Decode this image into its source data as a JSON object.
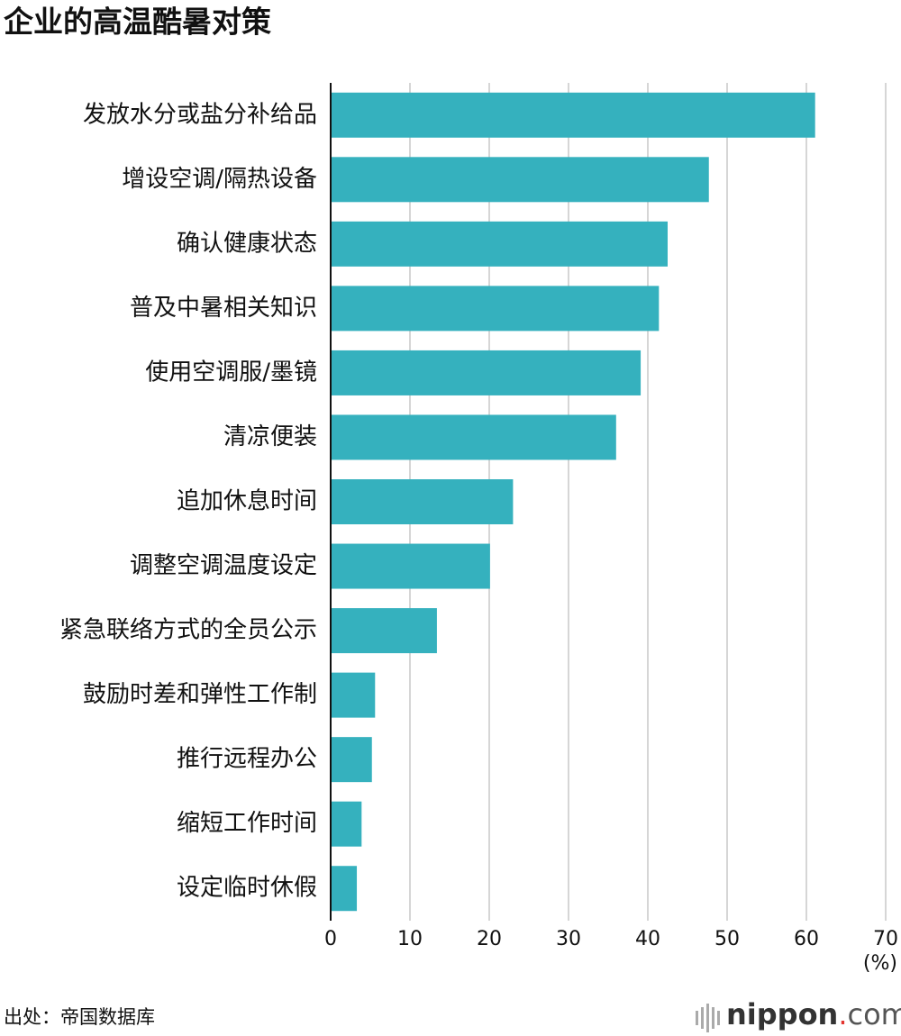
{
  "chart_data": {
    "type": "barh",
    "title": "企业的高温酷暑对策",
    "categories": [
      "发放水分或盐分补给品",
      "增设空调/隔热设备",
      "确认健康状态",
      "普及中暑相关知识",
      "使用空调服/墨镜",
      "清凉便装",
      "追加休息时间",
      "调整空调温度设定",
      "紧急联络方式的全员公示",
      "鼓励时差和弹性工作制",
      "推行远程办公",
      "缩短工作时间",
      "设定临时休假"
    ],
    "values": [
      61.1,
      47.7,
      42.5,
      41.4,
      39.1,
      36.0,
      23.0,
      20.1,
      13.4,
      5.6,
      5.2,
      3.9,
      3.3
    ],
    "color": "#35b1be",
    "xlim": [
      0,
      70
    ],
    "xticks": [
      0,
      10,
      20,
      30,
      40,
      50,
      60,
      70
    ],
    "grid": true,
    "xlabel": "(%)",
    "source": "出处：帝国数据库",
    "logo": {
      "name": "nippon",
      "dot": ".",
      "domain": "com"
    }
  }
}
